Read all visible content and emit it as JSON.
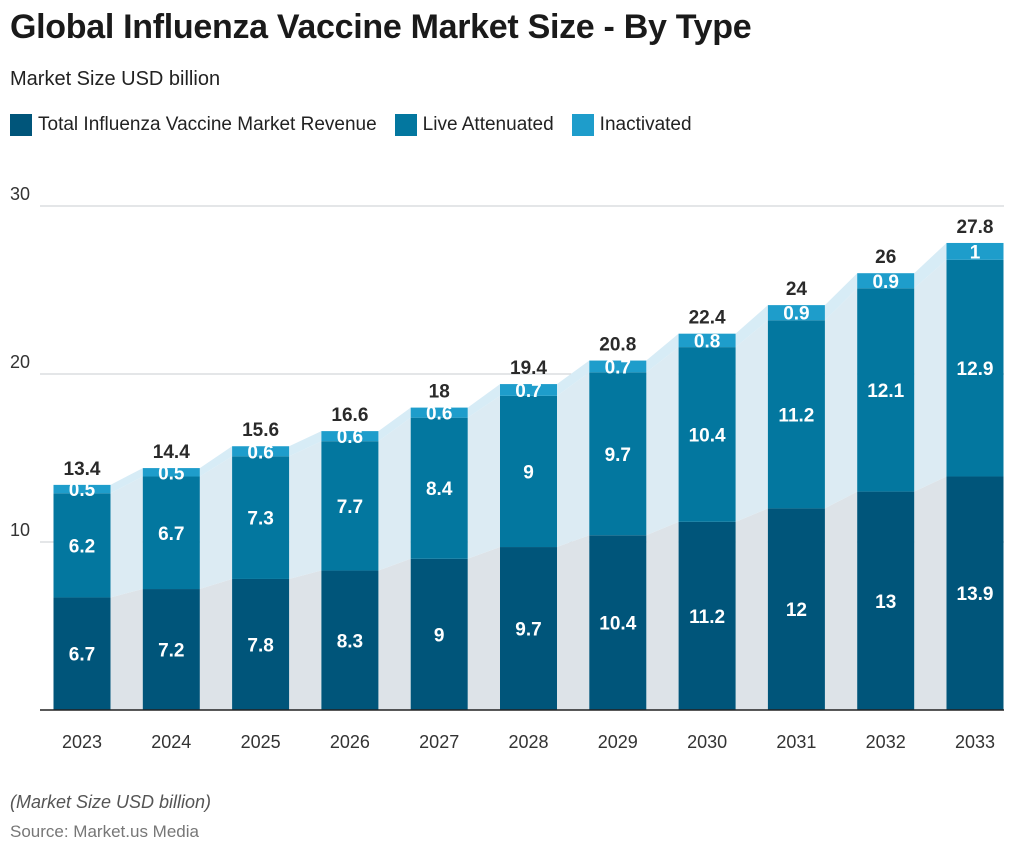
{
  "header": {
    "title": "Global Influenza Vaccine Market Size - By Type",
    "subtitle": "Market Size USD billion"
  },
  "legend": [
    {
      "label": "Total Influenza Vaccine Market Revenue",
      "color": "#00557a"
    },
    {
      "label": "Live Attenuated",
      "color": "#03779f"
    },
    {
      "label": "Inactivated",
      "color": "#1e9dcb"
    }
  ],
  "footer": {
    "note": "(Market Size USD billion)",
    "source": "Source: Market.us Media"
  },
  "chart_data": {
    "type": "bar",
    "stacked": true,
    "categories": [
      "2023",
      "2024",
      "2025",
      "2026",
      "2027",
      "2028",
      "2029",
      "2030",
      "2031",
      "2032",
      "2033"
    ],
    "series": [
      {
        "name": "Total Influenza Vaccine Market Revenue",
        "color": "#00557a",
        "values": [
          6.7,
          7.2,
          7.8,
          8.3,
          9,
          9.7,
          10.4,
          11.2,
          12,
          13,
          13.9
        ]
      },
      {
        "name": "Live Attenuated",
        "color": "#03779f",
        "values": [
          6.2,
          6.7,
          7.3,
          7.7,
          8.4,
          9,
          9.7,
          10.4,
          11.2,
          12.1,
          12.9
        ]
      },
      {
        "name": "Inactivated",
        "color": "#1e9dcb",
        "values": [
          0.5,
          0.5,
          0.6,
          0.6,
          0.6,
          0.7,
          0.7,
          0.8,
          0.9,
          0.9,
          1
        ]
      }
    ],
    "totals": [
      "13.4",
      "14.4",
      "15.6",
      "16.6",
      "18",
      "19.4",
      "20.8",
      "22.4",
      "24",
      "26",
      "27.8"
    ],
    "yticks": [
      10,
      20,
      30
    ],
    "ylim": [
      0,
      30
    ],
    "grid": true,
    "legend_position": "top-left"
  }
}
